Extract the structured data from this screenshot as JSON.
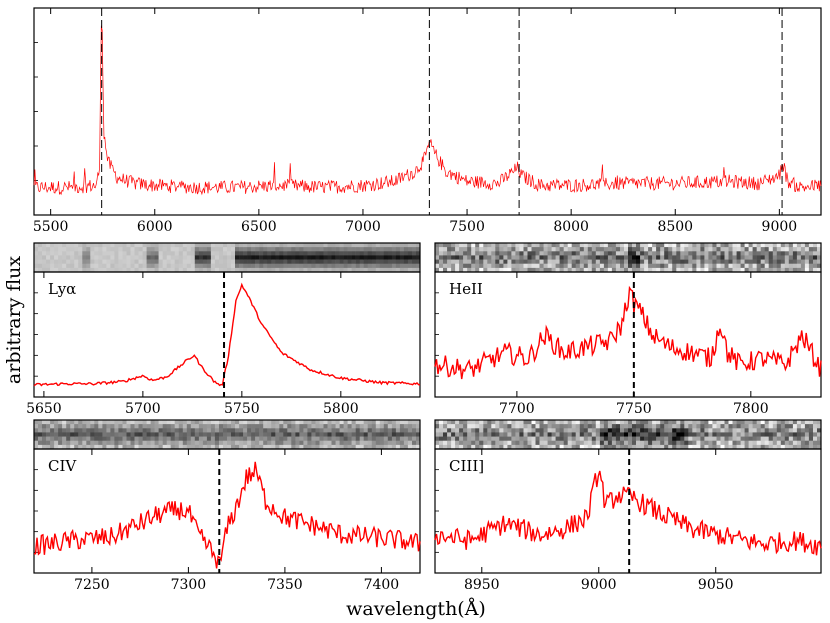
{
  "figure": {
    "ylabel": "arbitrary flux",
    "xlabel": "wavelength(Å)",
    "series_color": "#ff0000",
    "marker_color": "#000000"
  },
  "chart_data": [
    {
      "type": "line",
      "panel": "top",
      "xlim": [
        5420,
        9200
      ],
      "ylim": [
        0,
        1
      ],
      "xticks": [
        5500,
        6000,
        6500,
        7000,
        7500,
        8000,
        8500,
        9000
      ],
      "markers": [
        5745,
        7319,
        7750,
        9013
      ],
      "x": [
        5420,
        5600,
        5720,
        5735,
        5743,
        5748,
        5755,
        5775,
        5820,
        5900,
        6000,
        6200,
        6400,
        6600,
        6800,
        7000,
        7150,
        7250,
        7300,
        7320,
        7340,
        7400,
        7500,
        7650,
        7745,
        7760,
        7850,
        8000,
        8250,
        8500,
        8750,
        8900,
        9000,
        9015,
        9040,
        9100,
        9200
      ],
      "y": [
        0.12,
        0.12,
        0.13,
        0.22,
        0.98,
        0.92,
        0.4,
        0.25,
        0.17,
        0.14,
        0.13,
        0.12,
        0.12,
        0.13,
        0.12,
        0.13,
        0.15,
        0.2,
        0.27,
        0.35,
        0.3,
        0.2,
        0.15,
        0.14,
        0.22,
        0.18,
        0.13,
        0.13,
        0.14,
        0.14,
        0.15,
        0.14,
        0.18,
        0.25,
        0.15,
        0.12,
        0.13
      ]
    },
    {
      "type": "line",
      "panel": "lya",
      "line_name": "Lyα",
      "xlim": [
        5645,
        5840
      ],
      "ylim": [
        0,
        1
      ],
      "xticks": [
        5650,
        5700,
        5750,
        5800
      ],
      "marker": 5741,
      "x": [
        5645,
        5660,
        5675,
        5690,
        5700,
        5705,
        5712,
        5722,
        5726,
        5729,
        5732,
        5736,
        5740,
        5743,
        5747,
        5750,
        5752,
        5755,
        5760,
        5770,
        5785,
        5800,
        5820,
        5840
      ],
      "y": [
        0.07,
        0.08,
        0.08,
        0.1,
        0.15,
        0.11,
        0.14,
        0.28,
        0.33,
        0.24,
        0.18,
        0.1,
        0.06,
        0.3,
        0.8,
        0.94,
        0.88,
        0.78,
        0.6,
        0.35,
        0.2,
        0.13,
        0.09,
        0.08
      ]
    },
    {
      "type": "line",
      "panel": "heii",
      "line_name": "HeII",
      "xlim": [
        7665,
        7830
      ],
      "ylim": [
        0,
        1
      ],
      "xticks": [
        7700,
        7750,
        7800
      ],
      "marker": 7750,
      "x": [
        7665,
        7680,
        7695,
        7705,
        7712,
        7720,
        7730,
        7740,
        7745,
        7748,
        7750,
        7753,
        7758,
        7765,
        7775,
        7783,
        7787,
        7790,
        7795,
        7805,
        7815,
        7822,
        7830
      ],
      "y": [
        0.25,
        0.2,
        0.35,
        0.3,
        0.5,
        0.35,
        0.4,
        0.45,
        0.6,
        0.88,
        0.78,
        0.7,
        0.5,
        0.4,
        0.35,
        0.3,
        0.62,
        0.35,
        0.25,
        0.3,
        0.25,
        0.5,
        0.2
      ]
    },
    {
      "type": "line",
      "panel": "civ",
      "line_name": "CIV",
      "xlim": [
        7220,
        7420
      ],
      "ylim": [
        0,
        1
      ],
      "xticks": [
        7250,
        7300,
        7350,
        7400
      ],
      "marker": 7316,
      "x": [
        7220,
        7240,
        7260,
        7275,
        7285,
        7295,
        7300,
        7305,
        7310,
        7314,
        7316,
        7320,
        7325,
        7330,
        7335,
        7340,
        7350,
        7365,
        7380,
        7395,
        7410,
        7420
      ],
      "y": [
        0.2,
        0.25,
        0.28,
        0.4,
        0.48,
        0.52,
        0.5,
        0.3,
        0.2,
        0.1,
        0.02,
        0.35,
        0.55,
        0.8,
        0.86,
        0.6,
        0.45,
        0.38,
        0.3,
        0.28,
        0.25,
        0.22
      ]
    },
    {
      "type": "line",
      "panel": "ciii",
      "line_name": "CIII]",
      "xlim": [
        8930,
        9095
      ],
      "ylim": [
        0,
        1
      ],
      "xticks": [
        8950,
        9000,
        9050
      ],
      "marker": 9013,
      "x": [
        8930,
        8945,
        8960,
        8975,
        8985,
        8995,
        9000,
        9003,
        9008,
        9015,
        9025,
        9040,
        9055,
        9070,
        9085,
        9095
      ],
      "y": [
        0.3,
        0.25,
        0.4,
        0.3,
        0.35,
        0.45,
        0.88,
        0.55,
        0.65,
        0.62,
        0.5,
        0.35,
        0.28,
        0.22,
        0.25,
        0.2
      ]
    }
  ]
}
